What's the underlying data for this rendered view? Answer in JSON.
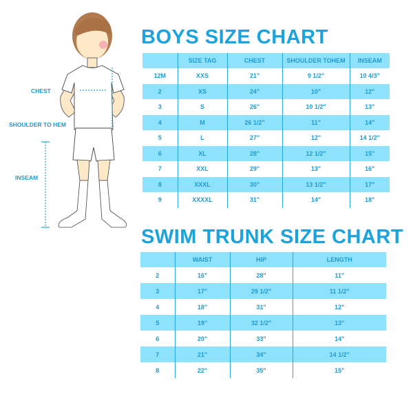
{
  "boys_chart": {
    "title": "BOYS SIZE CHART",
    "headers": [
      "",
      "SIZE TAG",
      "CHEST",
      "SHOULDER TOHEM",
      "INSEAM"
    ],
    "rows": [
      [
        "12M",
        "XXS",
        "21\"",
        "9 1/2\"",
        "10 4/3\""
      ],
      [
        "2",
        "XS",
        "24\"",
        "10\"",
        "12\""
      ],
      [
        "3",
        "S",
        "26\"",
        "10 1/2\"",
        "13\""
      ],
      [
        "4",
        "M",
        "26 1/2\"",
        "11\"",
        "14\""
      ],
      [
        "5",
        "L",
        "27\"",
        "12\"",
        "14 1/2\""
      ],
      [
        "6",
        "XL",
        "28\"",
        "12 1/2\"",
        "15\""
      ],
      [
        "7",
        "XXL",
        "29\"",
        "13\"",
        "16\""
      ],
      [
        "8",
        "XXXL",
        "30\"",
        "13 1/2\"",
        "17\""
      ],
      [
        "9",
        "XXXXL",
        "31\"",
        "14\"",
        "18\""
      ]
    ]
  },
  "swim_chart": {
    "title": "SWIM TRUNK SIZE CHART",
    "headers": [
      "",
      "WAIST",
      "HIP",
      "LENGTH"
    ],
    "rows": [
      [
        "2",
        "16\"",
        "28\"",
        "11\""
      ],
      [
        "3",
        "17\"",
        "29 1/2\"",
        "11 1/2\""
      ],
      [
        "4",
        "18\"",
        "31\"",
        "12\""
      ],
      [
        "5",
        "19\"",
        "32 1/2\"",
        "13\""
      ],
      [
        "6",
        "20\"",
        "33\"",
        "14\""
      ],
      [
        "7",
        "21\"",
        "34\"",
        "14 1/2\""
      ],
      [
        "8",
        "22\"",
        "35\"",
        "15\""
      ]
    ]
  },
  "figure_labels": {
    "chest": "CHEST",
    "shoulder_to_hem": "SHOULDER TO HEM",
    "inseam": "INSEAM"
  },
  "colors": {
    "accent": "#1ba3de",
    "band": "#8fe2fb"
  }
}
